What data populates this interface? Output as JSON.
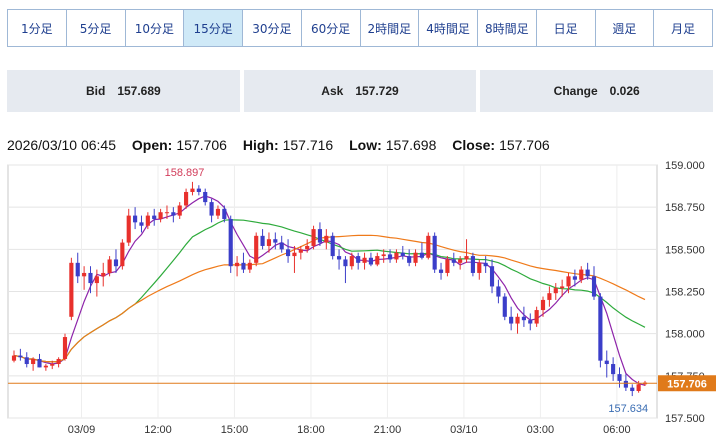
{
  "timeframes": [
    {
      "label": "1分足",
      "active": false
    },
    {
      "label": "5分足",
      "active": false
    },
    {
      "label": "10分足",
      "active": false
    },
    {
      "label": "15分足",
      "active": true
    },
    {
      "label": "30分足",
      "active": false
    },
    {
      "label": "60分足",
      "active": false
    },
    {
      "label": "2時間足",
      "active": false
    },
    {
      "label": "4時間足",
      "active": false
    },
    {
      "label": "8時間足",
      "active": false
    },
    {
      "label": "日足",
      "active": false
    },
    {
      "label": "週足",
      "active": false
    },
    {
      "label": "月足",
      "active": false
    }
  ],
  "quotes": {
    "bid_label": "Bid",
    "bid": "157.689",
    "ask_label": "Ask",
    "ask": "157.729",
    "change_label": "Change",
    "change": "0.026"
  },
  "ohlc": {
    "datetime": "2026/03/10 06:45",
    "open_label": "Open:",
    "open": "157.706",
    "high_label": "High:",
    "high": "157.716",
    "low_label": "Low:",
    "low": "157.698",
    "close_label": "Close:",
    "close": "157.706"
  },
  "chart_data": {
    "type": "candlestick",
    "ylim": [
      157.5,
      159.0
    ],
    "y_ticks": [
      "159.000",
      "158.750",
      "158.500",
      "158.250",
      "158.000",
      "157.750",
      "157.500"
    ],
    "x_ticks": [
      "03/09",
      "12:00",
      "15:00",
      "18:00",
      "21:00",
      "03/10",
      "03:00",
      "06:00"
    ],
    "current_price": 157.706,
    "current_price_label": "157.706",
    "max_label": "158.897",
    "min_label": "157.634",
    "colors": {
      "up": "#e8302c",
      "down": "#3b3ec9",
      "ma_short": "#8e24aa",
      "ma_mid": "#2eab3c",
      "ma_long": "#ef7a1a",
      "price_line": "#e07a1a"
    },
    "candles": [
      [
        157.84,
        157.9,
        157.83,
        157.87
      ],
      [
        157.87,
        157.91,
        157.84,
        157.86
      ],
      [
        157.86,
        157.89,
        157.8,
        157.82
      ],
      [
        157.82,
        157.86,
        157.78,
        157.85
      ],
      [
        157.85,
        157.88,
        157.8,
        157.8
      ],
      [
        157.8,
        157.82,
        157.78,
        157.81
      ],
      [
        157.81,
        157.84,
        157.79,
        157.82
      ],
      [
        157.82,
        157.86,
        157.8,
        157.85
      ],
      [
        157.85,
        158.0,
        157.84,
        157.98
      ],
      [
        158.1,
        158.45,
        158.08,
        158.42
      ],
      [
        158.42,
        158.48,
        158.3,
        158.34
      ],
      [
        158.34,
        158.4,
        158.26,
        158.36
      ],
      [
        158.36,
        158.4,
        158.24,
        158.3
      ],
      [
        158.3,
        158.38,
        158.22,
        158.34
      ],
      [
        158.34,
        158.42,
        158.28,
        158.36
      ],
      [
        158.36,
        158.46,
        158.34,
        158.44
      ],
      [
        158.44,
        158.5,
        158.36,
        158.4
      ],
      [
        158.4,
        158.56,
        158.38,
        158.54
      ],
      [
        158.54,
        158.74,
        158.52,
        158.7
      ],
      [
        158.7,
        158.75,
        158.62,
        158.66
      ],
      [
        158.66,
        158.7,
        158.6,
        158.64
      ],
      [
        158.64,
        158.72,
        158.62,
        158.7
      ],
      [
        158.7,
        158.74,
        158.64,
        158.68
      ],
      [
        158.68,
        158.74,
        158.66,
        158.72
      ],
      [
        158.72,
        158.76,
        158.68,
        158.72
      ],
      [
        158.72,
        158.75,
        158.66,
        158.7
      ],
      [
        158.7,
        158.78,
        158.68,
        158.76
      ],
      [
        158.76,
        158.86,
        158.74,
        158.84
      ],
      [
        158.84,
        158.9,
        158.82,
        158.86
      ],
      [
        158.86,
        158.88,
        158.82,
        158.84
      ],
      [
        158.84,
        158.86,
        158.76,
        158.78
      ],
      [
        158.78,
        158.8,
        158.66,
        158.7
      ],
      [
        158.7,
        158.76,
        158.68,
        158.74
      ],
      [
        158.74,
        158.76,
        158.66,
        158.68
      ],
      [
        158.68,
        158.7,
        158.36,
        158.4
      ],
      [
        158.4,
        158.46,
        158.34,
        158.42
      ],
      [
        158.42,
        158.48,
        158.36,
        158.38
      ],
      [
        158.38,
        158.44,
        158.36,
        158.42
      ],
      [
        158.42,
        158.6,
        158.4,
        158.58
      ],
      [
        158.58,
        158.62,
        158.5,
        158.52
      ],
      [
        158.52,
        158.6,
        158.48,
        158.56
      ],
      [
        158.56,
        158.6,
        158.5,
        158.54
      ],
      [
        158.54,
        158.58,
        158.48,
        158.5
      ],
      [
        158.5,
        158.56,
        158.42,
        158.46
      ],
      [
        158.46,
        158.52,
        158.36,
        158.48
      ],
      [
        158.48,
        158.52,
        158.44,
        158.5
      ],
      [
        158.5,
        158.56,
        158.48,
        158.52
      ],
      [
        158.52,
        158.64,
        158.5,
        158.62
      ],
      [
        158.62,
        158.66,
        158.52,
        158.54
      ],
      [
        158.54,
        158.62,
        158.5,
        158.58
      ],
      [
        158.58,
        158.6,
        158.44,
        158.46
      ],
      [
        158.46,
        158.5,
        158.38,
        158.44
      ],
      [
        158.44,
        158.46,
        158.3,
        158.4
      ],
      [
        158.4,
        158.48,
        158.38,
        158.46
      ],
      [
        158.46,
        158.48,
        158.38,
        158.42
      ],
      [
        158.42,
        158.48,
        158.38,
        158.45
      ],
      [
        158.45,
        158.48,
        158.4,
        158.41
      ],
      [
        158.41,
        158.48,
        158.4,
        158.46
      ],
      [
        158.46,
        158.5,
        158.42,
        158.47
      ],
      [
        158.47,
        158.5,
        158.42,
        158.44
      ],
      [
        158.44,
        158.5,
        158.42,
        158.48
      ],
      [
        158.48,
        158.52,
        158.44,
        158.46
      ],
      [
        158.46,
        158.5,
        158.4,
        158.42
      ],
      [
        158.42,
        158.5,
        158.4,
        158.48
      ],
      [
        158.48,
        158.54,
        158.44,
        158.45
      ],
      [
        158.45,
        158.6,
        158.44,
        158.58
      ],
      [
        158.58,
        158.6,
        158.36,
        158.38
      ],
      [
        158.38,
        158.42,
        158.32,
        158.36
      ],
      [
        158.36,
        158.46,
        158.34,
        158.44
      ],
      [
        158.44,
        158.48,
        158.4,
        158.42
      ],
      [
        158.42,
        158.46,
        158.38,
        158.44
      ],
      [
        158.44,
        158.56,
        158.42,
        158.46
      ],
      [
        158.46,
        158.48,
        158.34,
        158.36
      ],
      [
        158.36,
        158.44,
        158.32,
        158.42
      ],
      [
        158.42,
        158.46,
        158.36,
        158.4
      ],
      [
        158.4,
        158.44,
        158.24,
        158.28
      ],
      [
        158.28,
        158.32,
        158.18,
        158.22
      ],
      [
        158.22,
        158.24,
        158.08,
        158.1
      ],
      [
        158.1,
        158.16,
        158.02,
        158.06
      ],
      [
        158.06,
        158.12,
        158.0,
        158.1
      ],
      [
        158.1,
        158.16,
        158.04,
        158.08
      ],
      [
        158.08,
        158.12,
        158.02,
        158.06
      ],
      [
        158.06,
        158.16,
        158.04,
        158.14
      ],
      [
        158.14,
        158.22,
        158.1,
        158.2
      ],
      [
        158.2,
        158.28,
        158.16,
        158.24
      ],
      [
        158.24,
        158.3,
        158.2,
        158.27
      ],
      [
        158.27,
        158.32,
        158.22,
        158.28
      ],
      [
        158.28,
        158.36,
        158.24,
        158.34
      ],
      [
        158.34,
        158.38,
        158.28,
        158.32
      ],
      [
        158.32,
        158.4,
        158.3,
        158.38
      ],
      [
        158.38,
        158.42,
        158.32,
        158.34
      ],
      [
        158.34,
        158.4,
        158.2,
        158.22
      ],
      [
        158.22,
        158.24,
        157.8,
        157.84
      ],
      [
        157.84,
        157.9,
        157.74,
        157.82
      ],
      [
        157.82,
        157.86,
        157.72,
        157.76
      ],
      [
        157.76,
        157.8,
        157.68,
        157.72
      ],
      [
        157.72,
        157.76,
        157.66,
        157.68
      ],
      [
        157.68,
        157.7,
        157.63,
        157.66
      ],
      [
        157.66,
        157.72,
        157.65,
        157.7
      ],
      [
        157.7,
        157.72,
        157.69,
        157.71
      ]
    ]
  }
}
